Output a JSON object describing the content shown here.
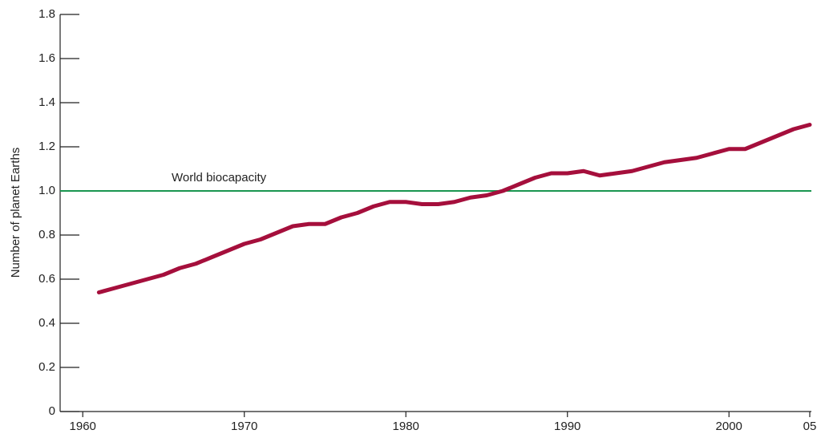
{
  "chart_data": {
    "type": "line",
    "y_label": "Number of planet Earths",
    "x": [
      1961,
      1962,
      1963,
      1964,
      1965,
      1966,
      1967,
      1968,
      1969,
      1970,
      1971,
      1972,
      1973,
      1974,
      1975,
      1976,
      1977,
      1978,
      1979,
      1980,
      1981,
      1982,
      1983,
      1984,
      1985,
      1986,
      1987,
      1988,
      1989,
      1990,
      1991,
      1992,
      1993,
      1994,
      1995,
      1996,
      1997,
      1998,
      1999,
      2000,
      2001,
      2002,
      2003,
      2004,
      2005
    ],
    "series": [
      {
        "color": "#a50f3c",
        "values": [
          0.54,
          0.56,
          0.58,
          0.6,
          0.62,
          0.65,
          0.67,
          0.7,
          0.73,
          0.76,
          0.78,
          0.81,
          0.84,
          0.85,
          0.85,
          0.88,
          0.9,
          0.93,
          0.95,
          0.95,
          0.94,
          0.94,
          0.95,
          0.97,
          0.98,
          1.0,
          1.03,
          1.06,
          1.08,
          1.08,
          1.09,
          1.07,
          1.08,
          1.09,
          1.11,
          1.13,
          1.14,
          1.15,
          1.17,
          1.19,
          1.19,
          1.22,
          1.25,
          1.28,
          1.3
        ]
      }
    ],
    "reference_line": {
      "value": 1.0,
      "label": "World biocapacity",
      "color": "#1a9650"
    },
    "xlim": [
      1958.6,
      2005.1
    ],
    "ylim": [
      0,
      1.8
    ],
    "xticks": [
      1960,
      1970,
      1980,
      1990,
      2000,
      {
        "value": 2005,
        "label": "05"
      }
    ],
    "yticks": [
      0,
      0.2,
      0.4,
      0.6,
      0.8,
      {
        "value": 1,
        "label": "1.0"
      },
      1.2,
      1.4,
      1.6,
      1.8
    ]
  }
}
